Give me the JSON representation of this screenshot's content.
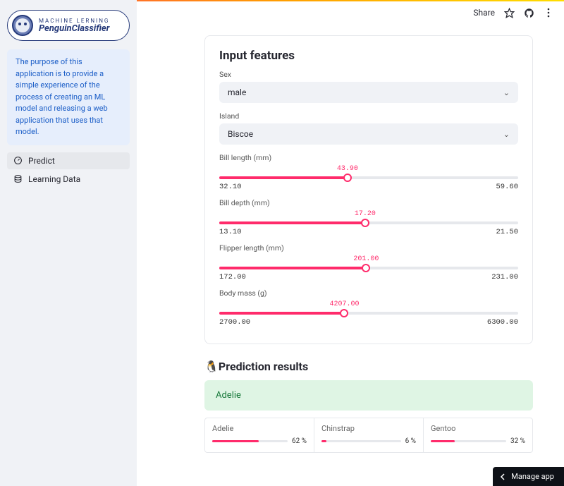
{
  "colors": {
    "accent": "#ff2b6b",
    "sidebar_bg": "#f0f2f6",
    "desc_bg": "#e6eefc",
    "desc_text": "#1a5dc7",
    "success_bg": "#dff5e4",
    "success_text": "#1a7a3c",
    "border": "#e6e8ec"
  },
  "header": {
    "share": "Share"
  },
  "sidebar": {
    "logo_top": "MACHINE LERNING",
    "logo_main": "PenguinClassifier",
    "description": "The purpose of this application is to provide a simple experience of the process of creating an ML model and releasing a web application that uses that model.",
    "nav": [
      {
        "label": "Predict",
        "active": true
      },
      {
        "label": "Learning Data",
        "active": false
      }
    ]
  },
  "inputs": {
    "title": "Input features",
    "sex": {
      "label": "Sex",
      "value": "male"
    },
    "island": {
      "label": "Island",
      "value": "Biscoe"
    },
    "sliders": [
      {
        "label": "Bill length (mm)",
        "min": 32.1,
        "max": 59.6,
        "value": 43.9,
        "min_s": "32.10",
        "max_s": "59.60",
        "val_s": "43.90"
      },
      {
        "label": "Bill depth (mm)",
        "min": 13.1,
        "max": 21.5,
        "value": 17.2,
        "min_s": "13.10",
        "max_s": "21.50",
        "val_s": "17.20"
      },
      {
        "label": "Flipper length (mm)",
        "min": 172.0,
        "max": 231.0,
        "value": 201.0,
        "min_s": "172.00",
        "max_s": "231.00",
        "val_s": "201.00"
      },
      {
        "label": "Body mass (g)",
        "min": 2700.0,
        "max": 6300.0,
        "value": 4207.0,
        "min_s": "2700.00",
        "max_s": "6300.00",
        "val_s": "4207.00"
      }
    ]
  },
  "results": {
    "title": "Prediction results",
    "winner": "Adelie",
    "probs": [
      {
        "label": "Adelie",
        "pct": 62,
        "pct_s": "62 %"
      },
      {
        "label": "Chinstrap",
        "pct": 6,
        "pct_s": "6 %"
      },
      {
        "label": "Gentoo",
        "pct": 32,
        "pct_s": "32 %"
      }
    ]
  },
  "footer": {
    "manage": "Manage app"
  }
}
